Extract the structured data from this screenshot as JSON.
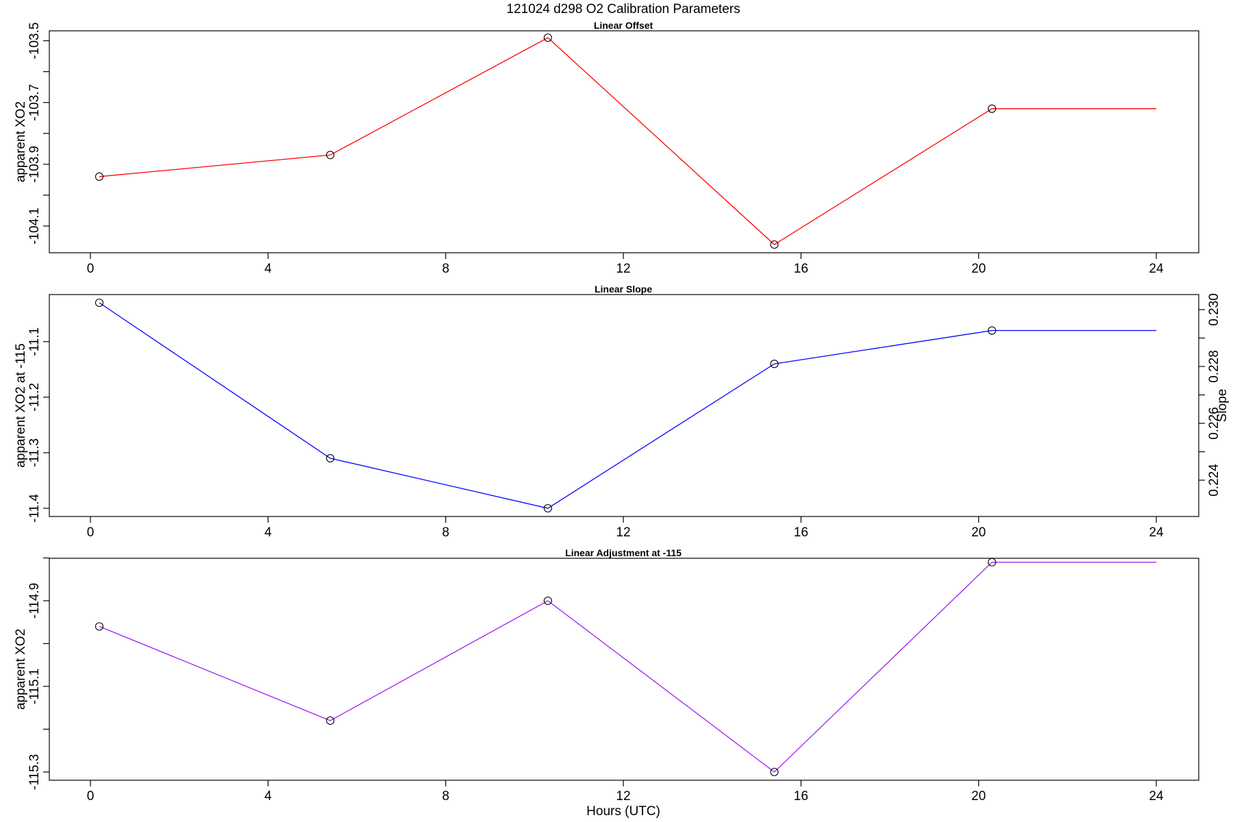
{
  "figure": {
    "title": "121024   d298   O2 Calibration Parameters",
    "xlabel": "Hours (UTC)"
  },
  "chart_data": [
    {
      "type": "line",
      "title": "Linear Offset",
      "xlabel": "",
      "ylabel": "apparent XO2",
      "xlim": [
        0,
        24
      ],
      "ylim": [
        -104.16,
        -103.49
      ],
      "xticks": [
        "0",
        "4",
        "8",
        "12",
        "16",
        "20",
        "24"
      ],
      "yticks": [
        "-103.5",
        "-103.7",
        "-103.9",
        "-104.1"
      ],
      "y_minor_ticks": [
        -103.6,
        -103.8,
        -104.0
      ],
      "x": [
        0.2,
        5.4,
        10.3,
        15.4,
        20.3,
        24.0
      ],
      "y": [
        -103.94,
        -103.87,
        -103.49,
        -104.16,
        -103.72,
        -103.72
      ],
      "line_color": "#ff0000",
      "marker_points": 5
    },
    {
      "type": "line",
      "title": "Linear Slope",
      "xlabel": "",
      "ylabel": "apparent XO2 at -115",
      "y2label": "Slope",
      "xlim": [
        0,
        24
      ],
      "ylim": [
        -11.4,
        -11.03
      ],
      "xticks": [
        "0",
        "4",
        "8",
        "12",
        "16",
        "20",
        "24"
      ],
      "yticks": [
        "-11.1",
        "-11.2",
        "-11.3",
        "-11.4"
      ],
      "y2ticks": [
        "0.230",
        "0.228",
        "0.226",
        "0.224"
      ],
      "y2_minor_ticks": [
        0.229,
        0.227,
        0.225
      ],
      "x": [
        0.2,
        5.4,
        10.3,
        15.4,
        20.3,
        24.0
      ],
      "y": [
        -11.03,
        -11.31,
        -11.4,
        -11.14,
        -11.08,
        -11.08
      ],
      "line_color": "#0000ff",
      "marker_points": 5
    },
    {
      "type": "line",
      "title": "Linear Adjustment at -115",
      "xlabel": "Hours (UTC)",
      "ylabel": "apparent XO2",
      "xlim": [
        0,
        24
      ],
      "ylim": [
        -115.3,
        -114.82
      ],
      "xticks": [
        "0",
        "4",
        "8",
        "12",
        "16",
        "20",
        "24"
      ],
      "yticks": [
        "-114.9",
        "-115.1",
        "-115.3"
      ],
      "y_minor_ticks": [
        -114.8,
        -115.0,
        -115.2
      ],
      "x": [
        0.2,
        5.4,
        10.3,
        15.4,
        20.3,
        24.0
      ],
      "y": [
        -114.96,
        -115.18,
        -114.9,
        -115.3,
        -114.81,
        -114.81
      ],
      "line_color": "#a020f0",
      "marker_points": 5
    }
  ]
}
